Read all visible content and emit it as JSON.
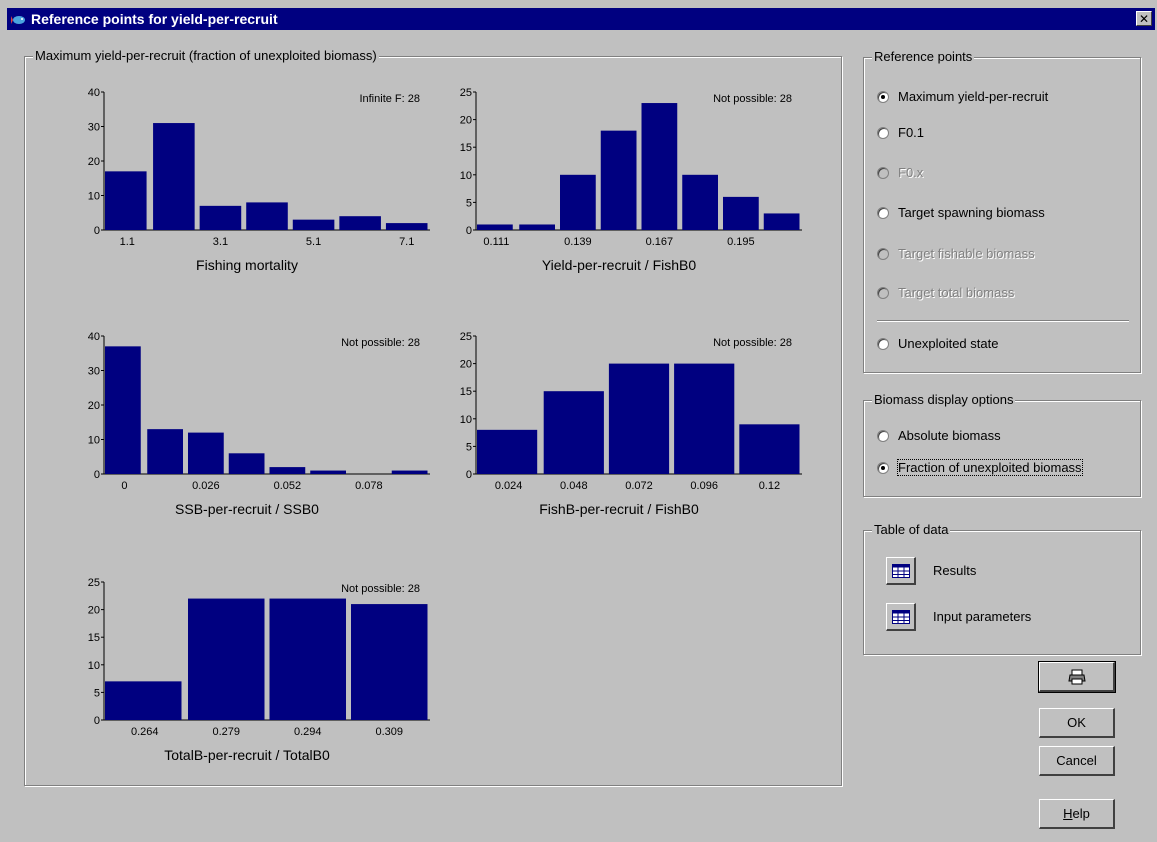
{
  "window": {
    "title": "Reference points for yield-per-recruit",
    "close_glyph": "✕"
  },
  "main_group": {
    "title": "Maximum yield-per-recruit  (fraction of unexploited biomass)"
  },
  "charts": [
    {
      "type": "bar",
      "title": "Fishing mortality",
      "annotation": "Infinite F: 28",
      "values": [
        17,
        31,
        7,
        8,
        3,
        4,
        2
      ],
      "x_tick_labels": [
        "1.1",
        "",
        "3.1",
        "",
        "5.1",
        "",
        "7.1"
      ],
      "ylim": [
        0,
        40
      ],
      "y_ticks": [
        "0",
        "10",
        "20",
        "30",
        "40"
      ],
      "bar_color": "#000080"
    },
    {
      "type": "bar",
      "title": "Yield-per-recruit / FishB0",
      "annotation": "Not possible: 28",
      "values": [
        1,
        1,
        10,
        18,
        23,
        10,
        6,
        3
      ],
      "x_tick_labels": [
        "0.111",
        "",
        "0.139",
        "",
        "0.167",
        "",
        "0.195",
        ""
      ],
      "ylim": [
        0,
        25
      ],
      "y_ticks": [
        "0",
        "5",
        "10",
        "15",
        "20",
        "25"
      ],
      "bar_color": "#000080"
    },
    {
      "type": "bar",
      "title": "SSB-per-recruit / SSB0",
      "annotation": "Not possible: 28",
      "values": [
        37,
        13,
        12,
        6,
        2,
        1,
        0,
        1
      ],
      "x_tick_labels": [
        "0",
        "",
        "0.026",
        "",
        "0.052",
        "",
        "0.078",
        ""
      ],
      "ylim": [
        0,
        40
      ],
      "y_ticks": [
        "0",
        "10",
        "20",
        "30",
        "40"
      ],
      "bar_color": "#000080"
    },
    {
      "type": "bar",
      "title": "FishB-per-recruit / FishB0",
      "annotation": "Not possible: 28",
      "values": [
        8,
        15,
        20,
        20,
        9
      ],
      "x_tick_labels": [
        "0.024",
        "0.048",
        "0.072",
        "0.096",
        "0.12"
      ],
      "ylim": [
        0,
        25
      ],
      "y_ticks": [
        "0",
        "5",
        "10",
        "15",
        "20",
        "25"
      ],
      "bar_color": "#000080"
    },
    {
      "type": "bar",
      "title": "TotalB-per-recruit / TotalB0",
      "annotation": "Not possible: 28",
      "values": [
        7,
        22,
        22,
        21
      ],
      "x_tick_labels": [
        "0.264",
        "0.279",
        "0.294",
        "0.309"
      ],
      "ylim": [
        0,
        25
      ],
      "y_ticks": [
        "0",
        "5",
        "10",
        "15",
        "20",
        "25"
      ],
      "bar_color": "#000080"
    }
  ],
  "reference_points": {
    "title": "Reference points",
    "options": [
      {
        "label": "Maximum yield-per-recruit",
        "checked": true,
        "disabled": false
      },
      {
        "label": "F0.1",
        "checked": false,
        "disabled": false
      },
      {
        "label": "F0.x",
        "checked": false,
        "disabled": true
      },
      {
        "label": "Target spawning biomass",
        "checked": false,
        "disabled": false
      },
      {
        "label": "Target fishable biomass",
        "checked": false,
        "disabled": true
      },
      {
        "label": "Target total biomass",
        "checked": false,
        "disabled": true
      },
      {
        "label": "Unexploited state",
        "checked": false,
        "disabled": false
      }
    ]
  },
  "biomass_display": {
    "title": "Biomass display options",
    "options": [
      {
        "label": "Absolute biomass",
        "checked": false
      },
      {
        "label": "Fraction of unexploited biomass",
        "checked": true
      }
    ]
  },
  "table_of_data": {
    "title": "Table of data",
    "results_label": "Results",
    "input_label": "Input parameters"
  },
  "buttons": {
    "ok": "OK",
    "cancel": "Cancel",
    "help_prefix": "H",
    "help_rest": "elp"
  }
}
